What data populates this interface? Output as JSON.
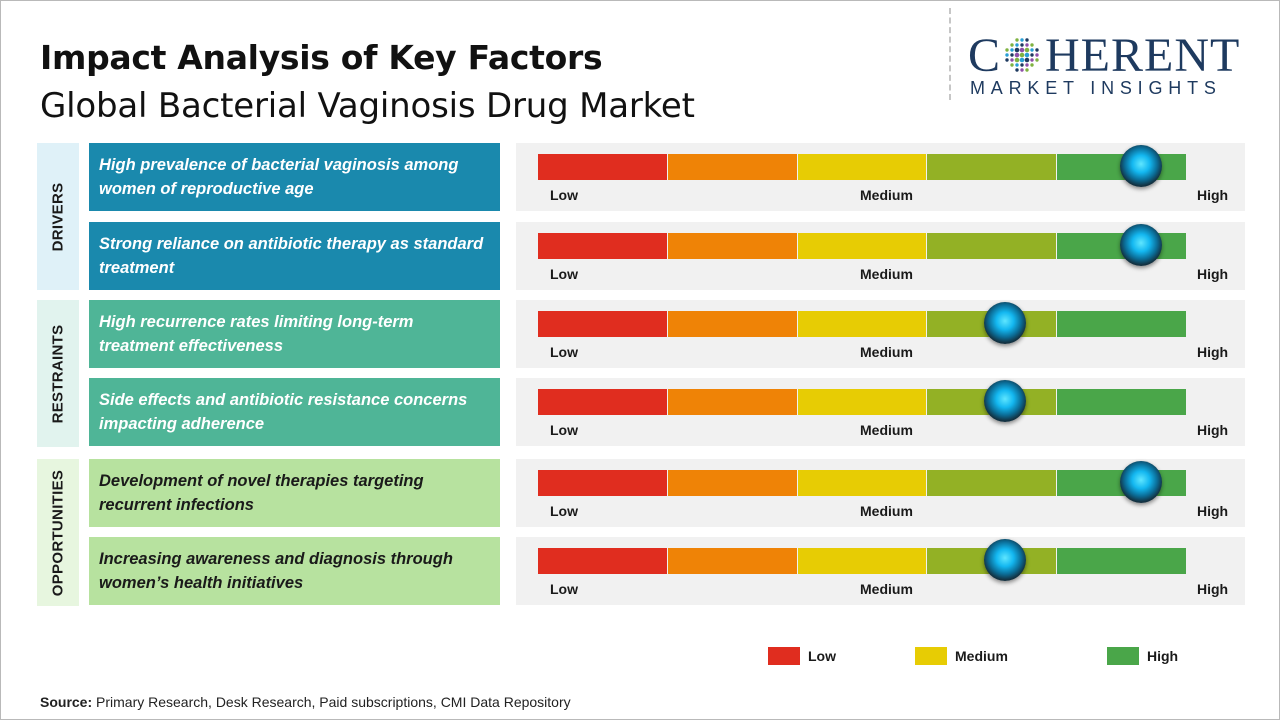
{
  "title": "Impact Analysis of Key Factors",
  "subtitle": "Global Bacterial Vaginosis Drug Market",
  "logo": {
    "main_before": "C",
    "main_after": "HERENT",
    "sub": "MARKET INSIGHTS"
  },
  "scale_labels": {
    "low": "Low",
    "medium": "Medium",
    "high": "High"
  },
  "colors": {
    "segments": [
      "#e02d1f",
      "#ef8306",
      "#e7cc04",
      "#93b125",
      "#4aa649"
    ],
    "drivers_category_bg": "#dff1f8",
    "drivers_factor_bg": "#1a89ad",
    "restraints_category_bg": "#e1f3ee",
    "restraints_factor_bg": "#4fb597",
    "opportunities_category_bg": "#e7f6df",
    "opportunities_factor_bg": "#b7e29f"
  },
  "chart_data": {
    "type": "gauge",
    "scale": [
      "Low",
      "Medium",
      "High"
    ],
    "categories": [
      {
        "name": "DRIVERS",
        "factors": [
          {
            "label": "High prevalence of bacterial vaginosis among women of reproductive age",
            "level": 0.93
          },
          {
            "label": "Strong reliance on antibiotic therapy as standard treatment",
            "level": 0.93
          }
        ]
      },
      {
        "name": "RESTRAINTS",
        "factors": [
          {
            "label": "High recurrence rates limiting long-term treatment effectiveness",
            "level": 0.72
          },
          {
            "label": "Side effects and antibiotic resistance concerns impacting adherence",
            "level": 0.72
          }
        ]
      },
      {
        "name": "OPPORTUNITIES",
        "factors": [
          {
            "label": "Development of novel therapies targeting recurrent infections",
            "level": 0.93
          },
          {
            "label": "Increasing awareness and diagnosis through women’s health initiatives",
            "level": 0.72
          }
        ]
      }
    ]
  },
  "legend": [
    {
      "label": "Low",
      "color": "#e02d1f"
    },
    {
      "label": "Medium",
      "color": "#e7cc04"
    },
    {
      "label": "High",
      "color": "#4aa649"
    }
  ],
  "source": {
    "prefix": "Source:",
    "text": "Primary Research, Desk Research, Paid subscriptions, CMI Data Repository"
  }
}
